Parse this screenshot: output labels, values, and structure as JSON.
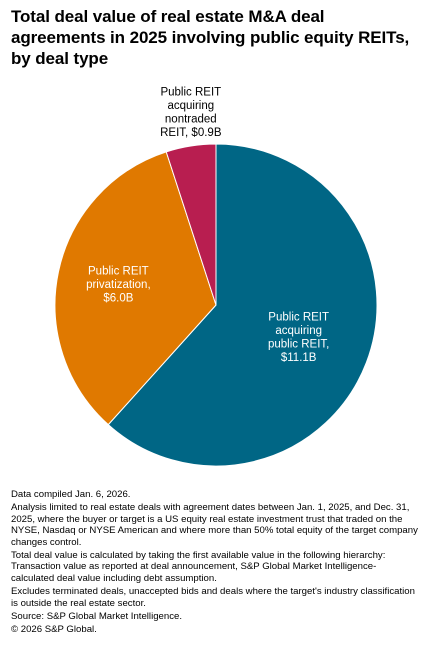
{
  "title": "Total deal value of real estate M&A deal agreements in 2025 involving public equity REITs, by deal type",
  "colors": {
    "teal": "#006685",
    "orange": "#e07900",
    "crimson": "#b81e50",
    "label_dark": "#000000",
    "label_light": "#ffffff"
  },
  "chart_data": {
    "type": "pie",
    "unit": "$B",
    "slices": [
      {
        "label": "Public REIT acquiring public REIT",
        "value": 11.1,
        "label_lines": [
          "Public REIT",
          "acquiring",
          "public REIT,",
          "$11.1B"
        ],
        "color": "#006685"
      },
      {
        "label": "Public REIT privatization",
        "value": 6.0,
        "label_lines": [
          "Public REIT",
          "privatization,",
          "$6.0B"
        ],
        "color": "#e07900"
      },
      {
        "label": "Public REIT acquiring nontraded REIT",
        "value": 0.9,
        "label_lines": [
          "Public REIT",
          "acquiring",
          "nontraded",
          "REIT, $0.9B"
        ],
        "color": "#b81e50"
      }
    ]
  },
  "notes": [
    "Data compiled Jan. 6, 2026.",
    "Analysis limited to real estate deals with agreement dates between Jan. 1, 2025, and Dec. 31, 2025, where the buyer or target is a US equity real estate investment trust that traded on the NYSE, Nasdaq or NYSE American and where more than 50% total equity of the target company changes control.",
    "Total deal value is calculated by taking the first available value in the following hierarchy: Transaction value as reported at deal announcement, S&P Global Market Intelligence-calculated deal value including debt assumption.",
    "Excludes terminated deals, unaccepted bids and deals where the target's industry classification is outside the real estate sector.",
    "Source: S&P Global Market Intelligence.",
    "© 2026 S&P Global."
  ]
}
